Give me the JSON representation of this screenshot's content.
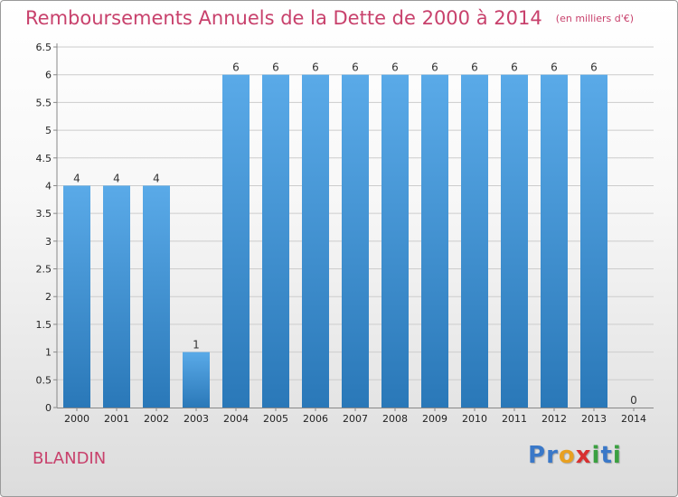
{
  "page": {
    "title": "Remboursements Annuels de la Dette de 2000 à 2014",
    "unit": "(en milliers d'€)",
    "commune": "BLANDIN",
    "brand": {
      "text": "Proxiti",
      "letters": [
        {
          "char": "P",
          "color": "#3a78c8"
        },
        {
          "char": "r",
          "color": "#3a78c8"
        },
        {
          "char": "o",
          "color": "#e8a020"
        },
        {
          "char": "x",
          "color": "#d83030"
        },
        {
          "char": "i",
          "color": "#3aa040"
        },
        {
          "char": "t",
          "color": "#3a78c8"
        },
        {
          "char": "i",
          "color": "#3aa040"
        }
      ]
    }
  },
  "colors": {
    "title": "#c8416c",
    "bar_light": "#5aaae8",
    "bar_dark": "#2a78b8",
    "grid": "#cccccc"
  },
  "chart_data": {
    "type": "bar",
    "title": "Remboursements Annuels de la Dette de 2000 à 2014",
    "xlabel": "",
    "ylabel": "",
    "categories": [
      "2000",
      "2001",
      "2002",
      "2003",
      "2004",
      "2005",
      "2006",
      "2007",
      "2008",
      "2009",
      "2010",
      "2011",
      "2012",
      "2013",
      "2014"
    ],
    "values": [
      4,
      4,
      4,
      1,
      6,
      6,
      6,
      6,
      6,
      6,
      6,
      6,
      6,
      6,
      0
    ],
    "data_labels": [
      "4",
      "4",
      "4",
      "1",
      "6",
      "6",
      "6",
      "6",
      "6",
      "6",
      "6",
      "6",
      "6",
      "6",
      "0"
    ],
    "ylim": [
      0,
      6.5
    ],
    "yticks": [
      0,
      0.5,
      1,
      1.5,
      2,
      2.5,
      3,
      3.5,
      4,
      4.5,
      5,
      5.5,
      6,
      6.5
    ],
    "ytick_labels": [
      "0",
      "0.5",
      "1",
      "1.5",
      "2",
      "2.5",
      "3",
      "3.5",
      "4",
      "4.5",
      "5",
      "5.5",
      "6",
      "6.5"
    ],
    "grid": true
  }
}
